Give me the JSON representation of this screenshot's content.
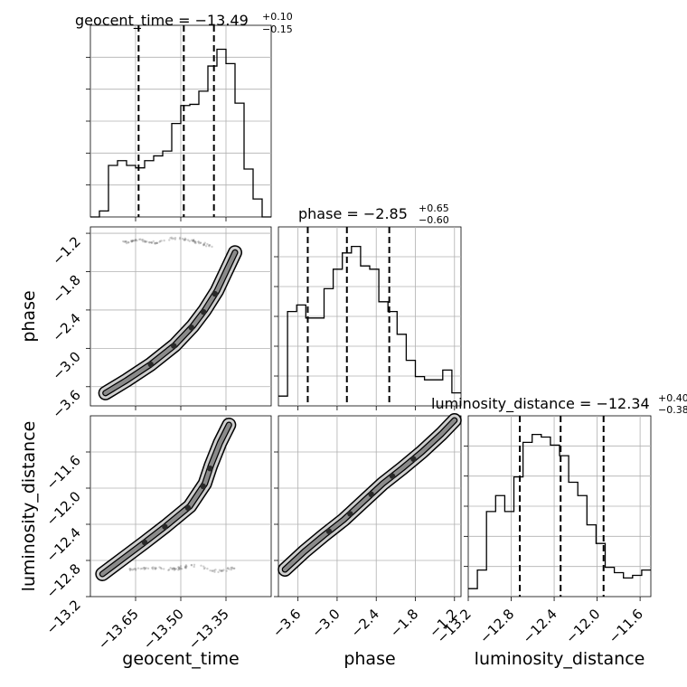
{
  "chart_data": [
    {
      "type": "histogram",
      "parameter": "geocent_time",
      "title": "geocent_time = −13.49",
      "title_upper": "+0.10",
      "title_lower": "−0.15",
      "xlim": [
        -13.8,
        -13.2
      ],
      "quantiles": [
        -13.64,
        -13.49,
        -13.39
      ],
      "bin_edges": [
        -13.8,
        -13.77,
        -13.74,
        -13.71,
        -13.68,
        -13.65,
        -13.62,
        -13.59,
        -13.56,
        -13.53,
        -13.5,
        -13.47,
        -13.44,
        -13.41,
        -13.38,
        -13.35,
        -13.32,
        -13.29,
        -13.26,
        -13.23,
        -13.2
      ],
      "counts": [
        0,
        5,
        43,
        47,
        43,
        41,
        47,
        51,
        55,
        78,
        93,
        94,
        105,
        126,
        140,
        128,
        95,
        40,
        15,
        0
      ],
      "ylim": [
        0,
        160
      ]
    },
    {
      "type": "histogram",
      "parameter": "phase",
      "title": "phase = −2.85",
      "title_upper": "+0.65",
      "title_lower": "−0.60",
      "xlim": [
        -3.9,
        -1.1
      ],
      "quantiles": [
        -3.45,
        -2.85,
        -2.2
      ],
      "bin_edges": [
        -3.9,
        -3.76,
        -3.62,
        -3.48,
        -3.34,
        -3.2,
        -3.06,
        -2.92,
        -2.78,
        -2.64,
        -2.5,
        -2.36,
        -2.22,
        -2.08,
        -1.94,
        -1.8,
        -1.66,
        -1.52,
        -1.38,
        -1.24,
        -1.1
      ],
      "counts": [
        3,
        29,
        31,
        27,
        27,
        36,
        42,
        47,
        49,
        43,
        42,
        32,
        29,
        22,
        14,
        9,
        8,
        8,
        11,
        4
      ],
      "ylim": [
        0,
        55
      ]
    },
    {
      "type": "histogram",
      "parameter": "luminosity_distance",
      "title": "luminosity_distance = −12.34",
      "title_upper": "+0.40",
      "title_lower": "−0.38",
      "xlim": [
        -13.2,
        -11.5
      ],
      "quantiles": [
        -12.72,
        -12.34,
        -11.94
      ],
      "bin_edges": [
        -13.2,
        -13.115,
        -13.03,
        -12.945,
        -12.86,
        -12.775,
        -12.69,
        -12.605,
        -12.52,
        -12.435,
        -12.35,
        -12.265,
        -12.18,
        -12.095,
        -12.01,
        -11.925,
        -11.84,
        -11.755,
        -11.67,
        -11.585,
        -11.5
      ],
      "counts": [
        3,
        10,
        32,
        38,
        32,
        45,
        58,
        61,
        60,
        57,
        53,
        43,
        38,
        27,
        20,
        11,
        9,
        7,
        8,
        10
      ],
      "ylim": [
        0,
        68
      ]
    },
    {
      "type": "scatter",
      "x_parameter": "geocent_time",
      "y_parameter": "phase",
      "xlim": [
        -13.8,
        -13.2
      ],
      "ylim": [
        -3.9,
        -1.1
      ],
      "ridge_x": [
        -13.75,
        -13.68,
        -13.6,
        -13.52,
        -13.46,
        -13.42,
        -13.38,
        -13.35,
        -13.32
      ],
      "ridge_y": [
        -3.7,
        -3.5,
        -3.25,
        -2.95,
        -2.65,
        -2.4,
        -2.1,
        -1.8,
        -1.5
      ],
      "cluster_x": [
        -13.7,
        -13.64,
        -13.58,
        -13.52,
        -13.46,
        -13.4
      ],
      "cluster_y": [
        -1.35,
        -1.3,
        -1.35,
        -1.28,
        -1.32,
        -1.4
      ]
    },
    {
      "type": "scatter",
      "x_parameter": "geocent_time",
      "y_parameter": "luminosity_distance",
      "xlim": [
        -13.8,
        -13.2
      ],
      "ylim": [
        -13.2,
        -11.2
      ],
      "ridge_x": [
        -13.76,
        -13.7,
        -13.62,
        -13.55,
        -13.47,
        -13.42,
        -13.4,
        -13.37,
        -13.34
      ],
      "ridge_y": [
        -12.95,
        -12.8,
        -12.6,
        -12.42,
        -12.2,
        -11.95,
        -11.75,
        -11.5,
        -11.3
      ],
      "cluster_x": [
        -13.68,
        -13.6,
        -13.52,
        -13.45,
        -13.38,
        -13.32
      ],
      "cluster_y": [
        -12.9,
        -12.88,
        -12.9,
        -12.85,
        -12.92,
        -12.88
      ]
    },
    {
      "type": "scatter",
      "x_parameter": "phase",
      "y_parameter": "luminosity_distance",
      "xlim": [
        -3.9,
        -1.1
      ],
      "ylim": [
        -13.2,
        -11.2
      ],
      "ridge_x": [
        -3.8,
        -3.5,
        -3.2,
        -2.9,
        -2.6,
        -2.3,
        -2.0,
        -1.7,
        -1.4,
        -1.2
      ],
      "ridge_y": [
        -12.9,
        -12.7,
        -12.52,
        -12.35,
        -12.15,
        -11.95,
        -11.78,
        -11.6,
        -11.4,
        -11.25
      ]
    }
  ],
  "labels": {
    "x_geocent": "geocent_time",
    "x_phase": "phase",
    "x_lumdist": "luminosity_distance",
    "y_phase": "phase",
    "y_lumdist": "luminosity_distance"
  },
  "ticks": {
    "geocent_time": [
      "−13.65",
      "−13.50",
      "−13.35"
    ],
    "geocent_time_values": [
      -13.65,
      -13.5,
      -13.35
    ],
    "phase": [
      "−3.6",
      "−3.0",
      "−2.4",
      "−1.8",
      "−1.2"
    ],
    "phase_values": [
      -3.6,
      -3.0,
      -2.4,
      -1.8,
      -1.2
    ],
    "lumdist_y": [
      "−13.2",
      "−12.8",
      "−12.4",
      "−12.0",
      "−11.6"
    ],
    "lumdist_y_values": [
      -13.2,
      -12.8,
      -12.4,
      -12.0,
      -11.6
    ],
    "lumdist_x": [
      "−13.2",
      "−12.8",
      "−12.4",
      "−12.0",
      "−11.6"
    ],
    "lumdist_x_values": [
      -13.2,
      -12.8,
      -12.4,
      -12.0,
      -11.6
    ]
  },
  "colors": {
    "line": "#000000",
    "grid": "#b0b0b0",
    "points": "#777777",
    "contour_fill_light": "#cfcfcf",
    "contour_fill_mid": "#8a8a8a",
    "contour_fill_dark": "#2a2a2a"
  }
}
